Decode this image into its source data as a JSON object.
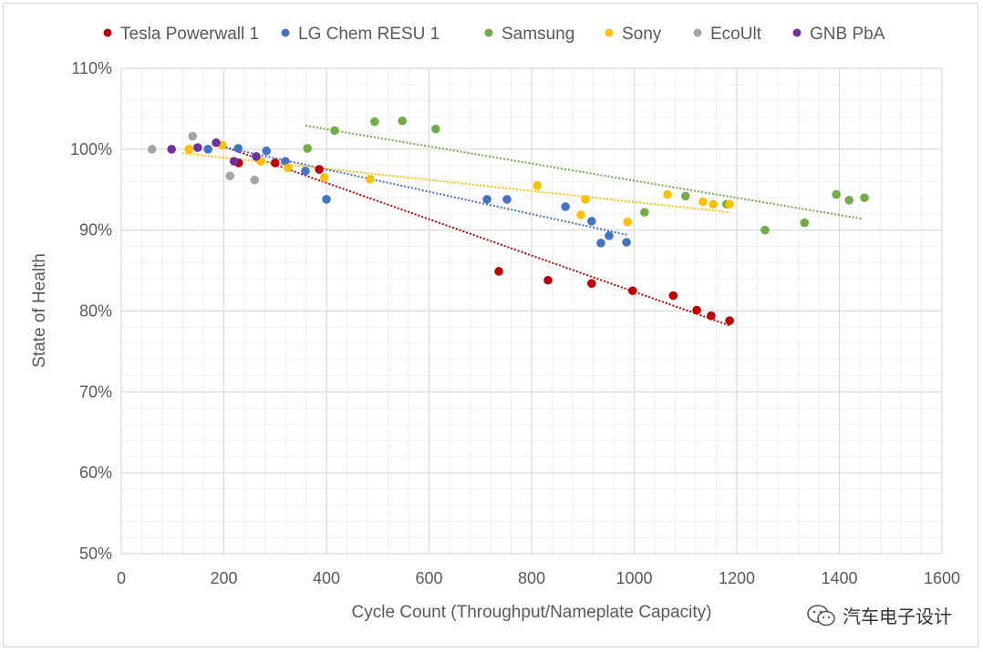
{
  "chart_data": {
    "type": "scatter",
    "title": "",
    "xlabel": "Cycle Count (Throughput/Nameplate  Capacity)",
    "ylabel": "State of Health",
    "xlim": [
      0,
      1600
    ],
    "ylim": [
      50,
      110
    ],
    "xticks": [
      0,
      200,
      400,
      600,
      800,
      1000,
      1200,
      1400,
      1600
    ],
    "yticks": [
      50,
      60,
      70,
      80,
      90,
      100,
      110
    ],
    "ytick_format": "percent",
    "grid": true,
    "minor_grid": true,
    "legend_position": "top",
    "series": [
      {
        "name": "Tesla Powerwall 1",
        "color": "#c00000",
        "x": [
          229,
          300,
          386,
          736,
          832,
          917,
          997,
          1076,
          1122,
          1150,
          1186
        ],
        "y": [
          98.3,
          98.3,
          97.5,
          84.9,
          83.8,
          83.4,
          82.5,
          81.9,
          80.1,
          79.4,
          78.8
        ],
        "trendline": {
          "x": [
            183,
            1186
          ],
          "y": [
            100.7,
            78.2
          ]
        }
      },
      {
        "name": "LG Chem RESU 1",
        "color": "#4472c4",
        "x": [
          169,
          228,
          283,
          320,
          359,
          400,
          713,
          752,
          866,
          917,
          951,
          935,
          985
        ],
        "y": [
          100.0,
          100.1,
          99.8,
          98.5,
          97.3,
          93.8,
          93.8,
          93.8,
          92.9,
          91.1,
          89.3,
          88.4,
          88.5
        ],
        "trendline": {
          "x": [
            190,
            987
          ],
          "y": [
            100.4,
            89.4
          ]
        }
      },
      {
        "name": "Samsung",
        "color": "#70ad47",
        "x": [
          363,
          416,
          494,
          548,
          613,
          1020,
          1100,
          1180,
          1255,
          1332,
          1394,
          1419,
          1449
        ],
        "y": [
          100.1,
          102.3,
          103.4,
          103.5,
          102.5,
          92.2,
          94.2,
          93.2,
          90.0,
          90.9,
          94.4,
          93.7,
          94.0
        ],
        "trendline": {
          "x": [
            359,
            1444
          ],
          "y": [
            102.9,
            91.4
          ]
        }
      },
      {
        "name": "Sony",
        "color": "#ffc000",
        "x": [
          132,
          197,
          272,
          325,
          396,
          485,
          811,
          905,
          896,
          987,
          1065,
          1134,
          1154,
          1186
        ],
        "y": [
          100.0,
          100.5,
          98.5,
          97.7,
          96.5,
          96.3,
          95.5,
          93.8,
          91.9,
          91.0,
          94.4,
          93.5,
          93.2,
          93.2
        ],
        "trendline": {
          "x": [
            119,
            1186
          ],
          "y": [
            99.5,
            92.2
          ]
        }
      },
      {
        "name": "EcoUlt",
        "color": "#a5a5a5",
        "x": [
          60,
          139,
          212,
          260
        ],
        "y": [
          100.0,
          101.6,
          96.7,
          96.2
        ]
      },
      {
        "name": "GNB PbA",
        "color": "#7030a0",
        "x": [
          98,
          149,
          185,
          220,
          263
        ],
        "y": [
          100.0,
          100.2,
          100.8,
          98.5,
          99.1
        ]
      }
    ]
  },
  "watermark": {
    "text": "汽车电子设计",
    "icon": "wechat-icon"
  }
}
